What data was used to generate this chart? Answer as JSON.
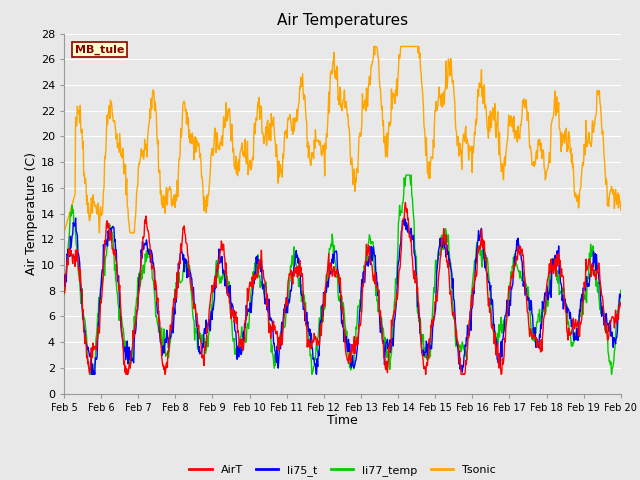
{
  "title": "Air Temperatures",
  "xlabel": "Time",
  "ylabel": "Air Temperature (C)",
  "ylim": [
    0,
    28
  ],
  "yticks": [
    0,
    2,
    4,
    6,
    8,
    10,
    12,
    14,
    16,
    18,
    20,
    22,
    24,
    26,
    28
  ],
  "xtick_labels": [
    "Feb 5",
    "Feb 6",
    "Feb 7",
    "Feb 8",
    "Feb 9",
    "Feb 10",
    "Feb 11",
    "Feb 12",
    "Feb 13",
    "Feb 14",
    "Feb 15",
    "Feb 16",
    "Feb 17",
    "Feb 18",
    "Feb 19",
    "Feb 20"
  ],
  "annotation_text": "MB_tule",
  "annotation_color": "#8B0000",
  "annotation_bg": "#FFFFCC",
  "colors": {
    "AirT": "#FF0000",
    "li75_t": "#0000FF",
    "li77_temp": "#00CC00",
    "Tsonic": "#FFA500"
  },
  "background_color": "#E8E8E8",
  "grid_color": "#FFFFFF",
  "title_fontsize": 11,
  "label_fontsize": 9,
  "tick_fontsize": 8
}
